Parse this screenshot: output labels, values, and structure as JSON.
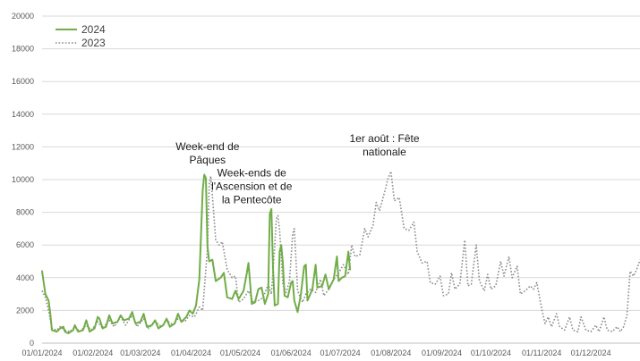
{
  "chart_data": {
    "type": "line",
    "title": "",
    "xlabel": "",
    "ylabel": "",
    "ylim": [
      0,
      20000
    ],
    "xlim": [
      "2024-01-01",
      "2024-12-31"
    ],
    "grid": "horizontal",
    "legend_position": "top-left",
    "y_ticks": [
      "0",
      "2000",
      "4000",
      "6000",
      "8000",
      "10000",
      "12000",
      "14000",
      "16000",
      "18000",
      "20000"
    ],
    "x_ticks": [
      "01/01/2024",
      "01/02/2024",
      "01/03/2024",
      "01/04/2024",
      "01/05/2024",
      "01/06/2024",
      "01/07/2024",
      "01/08/2024",
      "01/09/2024",
      "01/10/2024",
      "01/11/2024",
      "01/12/2024"
    ],
    "x_tick_dates": [
      "2024-01-01",
      "2024-02-01",
      "2024-03-01",
      "2024-04-01",
      "2024-05-01",
      "2024-06-01",
      "2024-07-01",
      "2024-08-01",
      "2024-09-01",
      "2024-10-01",
      "2024-11-01",
      "2024-12-01"
    ],
    "series": [
      {
        "name": "2024",
        "color": "#70ad47",
        "style": "solid",
        "points": [
          [
            "2024-01-01",
            4400
          ],
          [
            "2024-01-03",
            3000
          ],
          [
            "2024-01-05",
            2600
          ],
          [
            "2024-01-06",
            1800
          ],
          [
            "2024-01-07",
            800
          ],
          [
            "2024-01-10",
            700
          ],
          [
            "2024-01-12",
            900
          ],
          [
            "2024-01-14",
            1000
          ],
          [
            "2024-01-15",
            700
          ],
          [
            "2024-01-17",
            600
          ],
          [
            "2024-01-20",
            800
          ],
          [
            "2024-01-21",
            1100
          ],
          [
            "2024-01-23",
            700
          ],
          [
            "2024-01-26",
            800
          ],
          [
            "2024-01-28",
            1400
          ],
          [
            "2024-01-30",
            700
          ],
          [
            "2024-02-02",
            900
          ],
          [
            "2024-02-04",
            1600
          ],
          [
            "2024-02-05",
            1500
          ],
          [
            "2024-02-07",
            900
          ],
          [
            "2024-02-09",
            1000
          ],
          [
            "2024-02-11",
            1700
          ],
          [
            "2024-02-13",
            1200
          ],
          [
            "2024-02-16",
            1300
          ],
          [
            "2024-02-18",
            1700
          ],
          [
            "2024-02-20",
            1400
          ],
          [
            "2024-02-23",
            1500
          ],
          [
            "2024-02-25",
            1900
          ],
          [
            "2024-02-27",
            1200
          ],
          [
            "2024-03-01",
            1300
          ],
          [
            "2024-03-03",
            1800
          ],
          [
            "2024-03-05",
            1000
          ],
          [
            "2024-03-08",
            1100
          ],
          [
            "2024-03-10",
            1400
          ],
          [
            "2024-03-12",
            900
          ],
          [
            "2024-03-15",
            1100
          ],
          [
            "2024-03-17",
            1500
          ],
          [
            "2024-03-19",
            1000
          ],
          [
            "2024-03-22",
            1200
          ],
          [
            "2024-03-24",
            1800
          ],
          [
            "2024-03-26",
            1300
          ],
          [
            "2024-03-29",
            1600
          ],
          [
            "2024-03-31",
            2000
          ],
          [
            "2024-04-02",
            1800
          ],
          [
            "2024-04-04",
            2300
          ],
          [
            "2024-04-06",
            3900
          ],
          [
            "2024-04-08",
            9300
          ],
          [
            "2024-04-09",
            10300
          ],
          [
            "2024-04-10",
            10100
          ],
          [
            "2024-04-11",
            5900
          ],
          [
            "2024-04-12",
            5000
          ],
          [
            "2024-04-14",
            5100
          ],
          [
            "2024-04-16",
            3800
          ],
          [
            "2024-04-19",
            4000
          ],
          [
            "2024-04-21",
            4300
          ],
          [
            "2024-04-23",
            2800
          ],
          [
            "2024-04-26",
            2700
          ],
          [
            "2024-04-28",
            3200
          ],
          [
            "2024-04-30",
            2700
          ],
          [
            "2024-05-03",
            3200
          ],
          [
            "2024-05-05",
            4300
          ],
          [
            "2024-05-06",
            4900
          ],
          [
            "2024-05-08",
            2400
          ],
          [
            "2024-05-10",
            2500
          ],
          [
            "2024-05-12",
            3300
          ],
          [
            "2024-05-14",
            3400
          ],
          [
            "2024-05-16",
            2400
          ],
          [
            "2024-05-18",
            3000
          ],
          [
            "2024-05-19",
            7900
          ],
          [
            "2024-05-20",
            8200
          ],
          [
            "2024-05-21",
            4600
          ],
          [
            "2024-05-22",
            2300
          ],
          [
            "2024-05-24",
            2400
          ],
          [
            "2024-05-25",
            5600
          ],
          [
            "2024-05-26",
            6000
          ],
          [
            "2024-05-27",
            4900
          ],
          [
            "2024-05-28",
            2900
          ],
          [
            "2024-05-30",
            2800
          ],
          [
            "2024-06-01",
            3700
          ],
          [
            "2024-06-02",
            3800
          ],
          [
            "2024-06-03",
            2600
          ],
          [
            "2024-06-05",
            1900
          ],
          [
            "2024-06-07",
            3000
          ],
          [
            "2024-06-09",
            4700
          ],
          [
            "2024-06-10",
            4800
          ],
          [
            "2024-06-11",
            2600
          ],
          [
            "2024-06-14",
            3300
          ],
          [
            "2024-06-16",
            4800
          ],
          [
            "2024-06-17",
            3400
          ],
          [
            "2024-06-20",
            3500
          ],
          [
            "2024-06-22",
            4200
          ],
          [
            "2024-06-24",
            3300
          ],
          [
            "2024-06-27",
            3900
          ],
          [
            "2024-06-29",
            5300
          ],
          [
            "2024-06-30",
            3800
          ],
          [
            "2024-07-02",
            4000
          ],
          [
            "2024-07-04",
            4100
          ],
          [
            "2024-07-06",
            5600
          ],
          [
            "2024-07-07",
            4500
          ]
        ]
      },
      {
        "name": "2023",
        "color": "#8c8c8c",
        "style": "dotted",
        "points": [
          [
            "2024-01-01",
            3200
          ],
          [
            "2024-01-03",
            2800
          ],
          [
            "2024-01-05",
            2000
          ],
          [
            "2024-01-07",
            900
          ],
          [
            "2024-01-10",
            800
          ],
          [
            "2024-01-12",
            1000
          ],
          [
            "2024-01-15",
            800
          ],
          [
            "2024-01-18",
            700
          ],
          [
            "2024-01-21",
            1000
          ],
          [
            "2024-01-24",
            700
          ],
          [
            "2024-01-28",
            1100
          ],
          [
            "2024-01-31",
            800
          ],
          [
            "2024-02-04",
            1300
          ],
          [
            "2024-02-07",
            900
          ],
          [
            "2024-02-11",
            1400
          ],
          [
            "2024-02-14",
            1000
          ],
          [
            "2024-02-18",
            1600
          ],
          [
            "2024-02-21",
            1100
          ],
          [
            "2024-02-25",
            1700
          ],
          [
            "2024-02-28",
            1000
          ],
          [
            "2024-03-03",
            1500
          ],
          [
            "2024-03-06",
            900
          ],
          [
            "2024-03-10",
            1300
          ],
          [
            "2024-03-14",
            1000
          ],
          [
            "2024-03-17",
            1400
          ],
          [
            "2024-03-21",
            1100
          ],
          [
            "2024-03-24",
            1500
          ],
          [
            "2024-03-28",
            1300
          ],
          [
            "2024-03-31",
            1700
          ],
          [
            "2024-04-03",
            1600
          ],
          [
            "2024-04-06",
            2200
          ],
          [
            "2024-04-08",
            2000
          ],
          [
            "2024-04-11",
            5800
          ],
          [
            "2024-04-12",
            9700
          ],
          [
            "2024-04-13",
            10200
          ],
          [
            "2024-04-14",
            9000
          ],
          [
            "2024-04-16",
            6300
          ],
          [
            "2024-04-18",
            6000
          ],
          [
            "2024-04-20",
            6200
          ],
          [
            "2024-04-23",
            4500
          ],
          [
            "2024-04-26",
            4000
          ],
          [
            "2024-04-28",
            4100
          ],
          [
            "2024-04-30",
            2500
          ],
          [
            "2024-05-03",
            2700
          ],
          [
            "2024-05-06",
            3200
          ],
          [
            "2024-05-09",
            2500
          ],
          [
            "2024-05-12",
            2600
          ],
          [
            "2024-05-15",
            2800
          ],
          [
            "2024-05-18",
            3600
          ],
          [
            "2024-05-20",
            3000
          ],
          [
            "2024-05-22",
            5900
          ],
          [
            "2024-05-23",
            7600
          ],
          [
            "2024-05-24",
            7800
          ],
          [
            "2024-05-25",
            6900
          ],
          [
            "2024-05-27",
            3600
          ],
          [
            "2024-05-29",
            3100
          ],
          [
            "2024-05-31",
            3800
          ],
          [
            "2024-06-02",
            6700
          ],
          [
            "2024-06-03",
            7000
          ],
          [
            "2024-06-05",
            3200
          ],
          [
            "2024-06-08",
            2500
          ],
          [
            "2024-06-10",
            3000
          ],
          [
            "2024-06-13",
            3300
          ],
          [
            "2024-06-16",
            3100
          ],
          [
            "2024-06-19",
            3900
          ],
          [
            "2024-06-21",
            2900
          ],
          [
            "2024-06-24",
            3300
          ],
          [
            "2024-06-27",
            3900
          ],
          [
            "2024-06-30",
            4300
          ],
          [
            "2024-07-03",
            4800
          ],
          [
            "2024-07-06",
            4200
          ],
          [
            "2024-07-08",
            6000
          ],
          [
            "2024-07-10",
            5300
          ],
          [
            "2024-07-13",
            5400
          ],
          [
            "2024-07-16",
            7000
          ],
          [
            "2024-07-18",
            6500
          ],
          [
            "2024-07-21",
            7200
          ],
          [
            "2024-07-23",
            8600
          ],
          [
            "2024-07-25",
            8100
          ],
          [
            "2024-07-28",
            9200
          ],
          [
            "2024-07-30",
            10000
          ],
          [
            "2024-08-01",
            10500
          ],
          [
            "2024-08-03",
            8700
          ],
          [
            "2024-08-06",
            8900
          ],
          [
            "2024-08-09",
            7000
          ],
          [
            "2024-08-12",
            6900
          ],
          [
            "2024-08-15",
            7400
          ],
          [
            "2024-08-17",
            5600
          ],
          [
            "2024-08-20",
            4900
          ],
          [
            "2024-08-23",
            5000
          ],
          [
            "2024-08-25",
            3700
          ],
          [
            "2024-08-28",
            3600
          ],
          [
            "2024-08-31",
            4100
          ],
          [
            "2024-09-02",
            2900
          ],
          [
            "2024-09-05",
            3000
          ],
          [
            "2024-09-07",
            4300
          ],
          [
            "2024-09-09",
            3300
          ],
          [
            "2024-09-12",
            3600
          ],
          [
            "2024-09-15",
            6300
          ],
          [
            "2024-09-17",
            3500
          ],
          [
            "2024-09-19",
            3600
          ],
          [
            "2024-09-22",
            6000
          ],
          [
            "2024-09-24",
            3800
          ],
          [
            "2024-09-27",
            3200
          ],
          [
            "2024-09-29",
            4200
          ],
          [
            "2024-10-01",
            3300
          ],
          [
            "2024-10-04",
            3500
          ],
          [
            "2024-10-07",
            5000
          ],
          [
            "2024-10-09",
            4100
          ],
          [
            "2024-10-12",
            5300
          ],
          [
            "2024-10-14",
            4000
          ],
          [
            "2024-10-17",
            4700
          ],
          [
            "2024-10-19",
            3000
          ],
          [
            "2024-10-22",
            3200
          ],
          [
            "2024-10-25",
            3500
          ],
          [
            "2024-10-27",
            3300
          ],
          [
            "2024-10-29",
            3700
          ],
          [
            "2024-11-01",
            2100
          ],
          [
            "2024-11-03",
            1200
          ],
          [
            "2024-11-05",
            1600
          ],
          [
            "2024-11-07",
            1000
          ],
          [
            "2024-11-10",
            1800
          ],
          [
            "2024-11-12",
            1000
          ],
          [
            "2024-11-15",
            800
          ],
          [
            "2024-11-18",
            1600
          ],
          [
            "2024-11-20",
            800
          ],
          [
            "2024-11-23",
            700
          ],
          [
            "2024-11-25",
            1600
          ],
          [
            "2024-11-28",
            800
          ],
          [
            "2024-12-01",
            700
          ],
          [
            "2024-12-04",
            1100
          ],
          [
            "2024-12-06",
            700
          ],
          [
            "2024-12-09",
            1600
          ],
          [
            "2024-12-11",
            800
          ],
          [
            "2024-12-14",
            700
          ],
          [
            "2024-12-17",
            1000
          ],
          [
            "2024-12-19",
            700
          ],
          [
            "2024-12-21",
            1000
          ],
          [
            "2024-12-23",
            1700
          ],
          [
            "2024-12-25",
            4400
          ],
          [
            "2024-12-27",
            4100
          ],
          [
            "2024-12-29",
            4500
          ],
          [
            "2024-12-31",
            5100
          ]
        ]
      }
    ],
    "annotations": [
      {
        "lines": [
          "Week-end de",
          "Pâques"
        ],
        "date": "2024-04-11",
        "value": 11800
      },
      {
        "lines": [
          "Week-ends de",
          "l'Ascension et de",
          "la Pentecôte"
        ],
        "date": "2024-05-08",
        "value": 10200
      },
      {
        "lines": [
          "1er août : Fête",
          "nationale"
        ],
        "date": "2024-07-28",
        "value": 12300
      }
    ]
  }
}
